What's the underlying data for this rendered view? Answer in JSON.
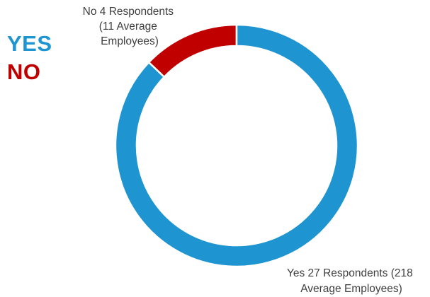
{
  "chart_data": {
    "type": "pie",
    "variant": "donut",
    "categories": [
      "No",
      "Yes"
    ],
    "values": [
      4,
      27
    ],
    "colors": [
      "#c00000",
      "#1e95d1"
    ],
    "labels": [
      [
        "No 4 Respondents",
        "(11 Average",
        "Employees)"
      ],
      [
        "Yes 27 Respondents (218",
        "Average Employees)"
      ]
    ],
    "legend": {
      "placement": "top-left",
      "items": [
        {
          "label": "YES",
          "color": "#1e95d1"
        },
        {
          "label": "NO",
          "color": "#c00000"
        }
      ]
    }
  }
}
